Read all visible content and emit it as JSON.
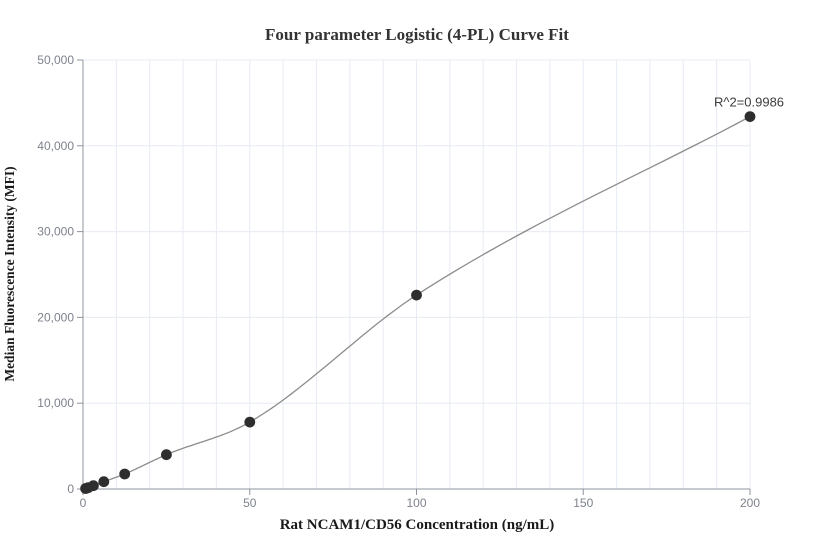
{
  "chart_data": {
    "type": "scatter",
    "title": "Four parameter Logistic (4-PL) Curve Fit",
    "xlabel": "Rat NCAM1/CD56 Concentration (ng/mL)",
    "ylabel": "Median Fluorescence Intensity (MFI)",
    "xlim": [
      0,
      200
    ],
    "ylim": [
      0,
      50000
    ],
    "xticks": [
      0,
      50,
      100,
      150,
      200
    ],
    "xtick_labels": [
      "0",
      "50",
      "100",
      "150",
      "200"
    ],
    "yticks": [
      0,
      10000,
      20000,
      30000,
      40000,
      50000
    ],
    "ytick_labels": [
      "0",
      "10,000",
      "20,000",
      "30,000",
      "40,000",
      "50,000"
    ],
    "grid": {
      "on": true,
      "vertical_step": 10,
      "horizontal_step": 10000
    },
    "legend_position": "none",
    "fit_type": "4PL",
    "r_squared": 0.9986,
    "annotation": {
      "text": "R^2=0.9986",
      "at_x": 200,
      "at_y": 43400
    },
    "series": [
      {
        "name": "standard-curve-points",
        "x": [
          0.781,
          1.563,
          3.125,
          6.25,
          12.5,
          25,
          50,
          100,
          200
        ],
        "y": [
          60,
          150,
          380,
          850,
          1750,
          4000,
          7800,
          22600,
          43400
        ]
      }
    ],
    "colors": {
      "point": "#2e2e2e",
      "curve": "#8c8c8c",
      "grid": "#e7ebf3",
      "axis": "#8f949c",
      "tick_label": "#7d828c",
      "title": "#333333",
      "axis_label": "#1a1a1a",
      "annotation": "#3d3d3d",
      "background": "#ffffff"
    }
  }
}
